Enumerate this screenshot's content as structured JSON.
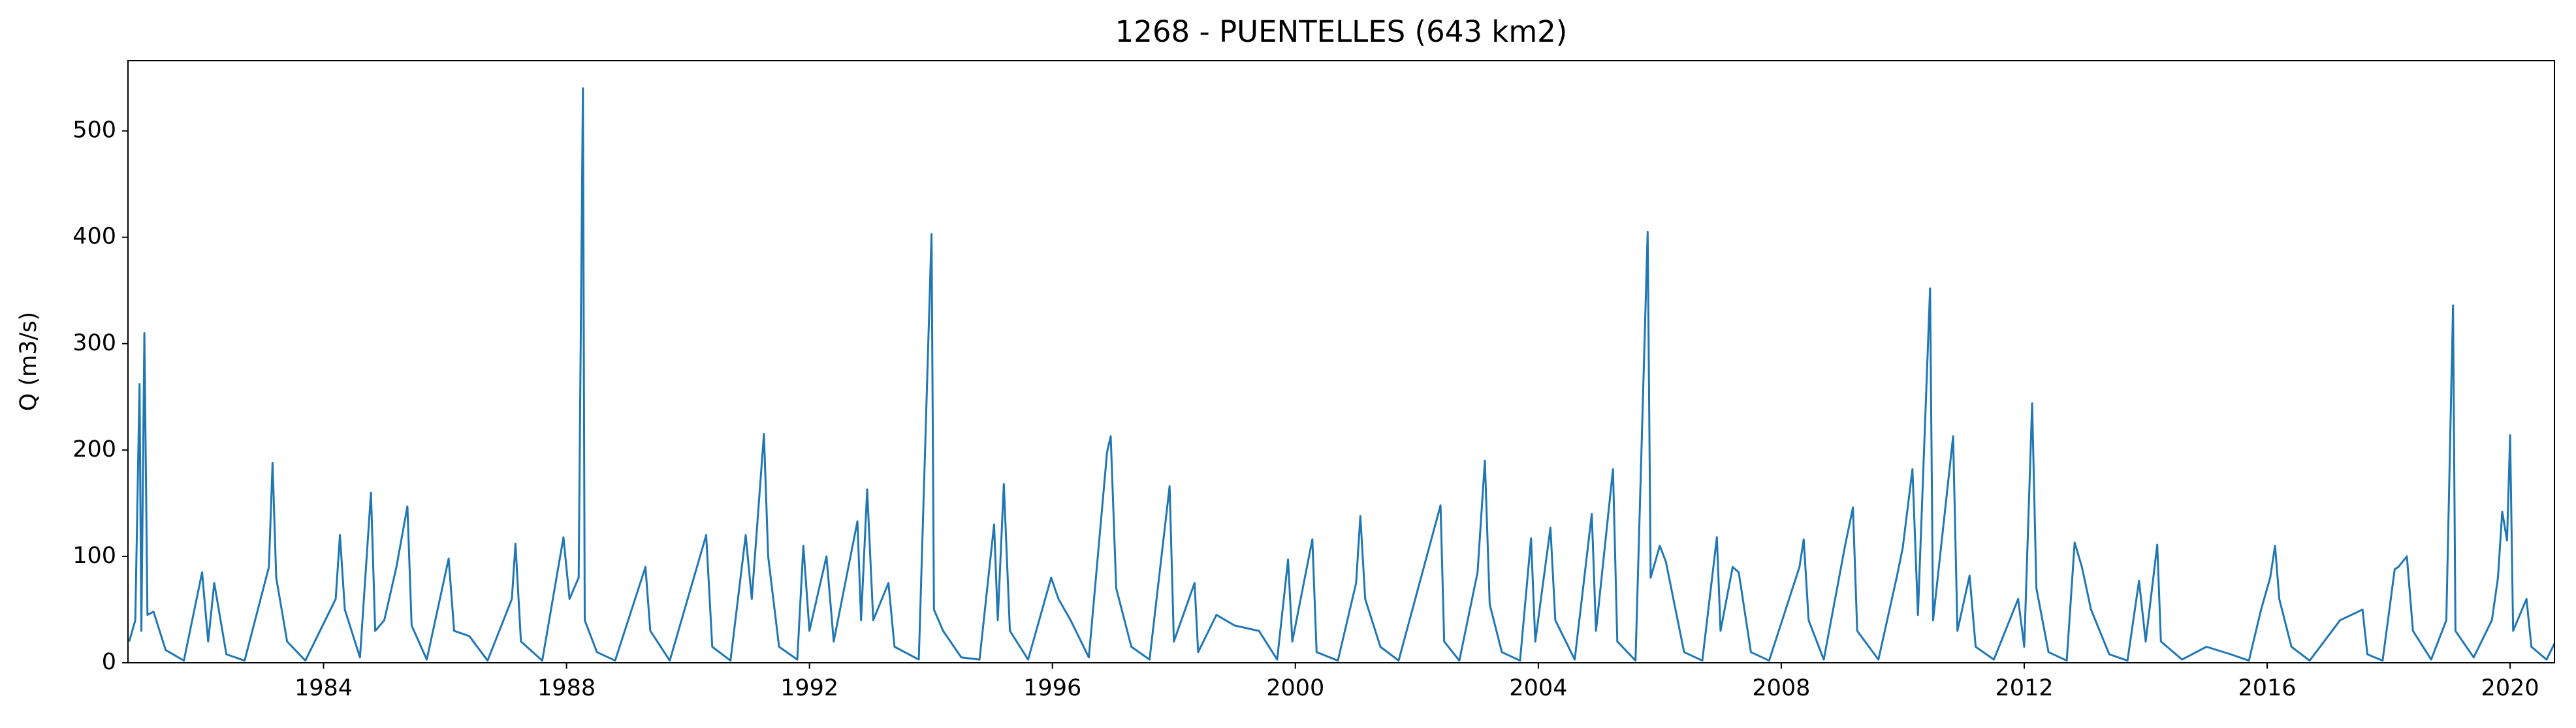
{
  "chart_data": {
    "type": "line",
    "title": "1268 - PUENTELLES (643 km2)",
    "y_label": "Q (m3/s)",
    "color": "#1f77b4",
    "x": [
      1980.8,
      1980.9,
      1980.97,
      1981,
      1981.05,
      1981.1,
      1981.2,
      1981.4,
      1981.7,
      1982,
      1982.1,
      1982.2,
      1982.4,
      1982.7,
      1983.1,
      1983.16,
      1983.22,
      1983.4,
      1983.7,
      1984.2,
      1984.27,
      1984.35,
      1984.6,
      1984.78,
      1984.85,
      1985,
      1985.2,
      1985.38,
      1985.45,
      1985.7,
      1986.06,
      1986.15,
      1986.4,
      1986.7,
      1987.1,
      1987.16,
      1987.25,
      1987.6,
      1987.95,
      1988.05,
      1988.2,
      1988.27,
      1988.3,
      1988.5,
      1988.8,
      1989.3,
      1989.38,
      1989.7,
      1990.3,
      1990.4,
      1990.7,
      1990.95,
      1991.05,
      1991.25,
      1991.32,
      1991.5,
      1991.8,
      1991.9,
      1992,
      1992.28,
      1992.4,
      1992.79,
      1992.85,
      1992.95,
      1993.05,
      1993.3,
      1993.4,
      1993.8,
      1994.01,
      1994.05,
      1994.2,
      1994.5,
      1994.8,
      1995.04,
      1995.1,
      1995.2,
      1995.3,
      1995.6,
      1995.98,
      1996.1,
      1996.3,
      1996.6,
      1996.9,
      1996.96,
      1997.05,
      1997.3,
      1997.6,
      1997.93,
      1998,
      1998.34,
      1998.4,
      1998.7,
      1999,
      1999.4,
      1999.7,
      1999.88,
      1999.95,
      2000.28,
      2000.35,
      2000.7,
      2001,
      2001.07,
      2001.15,
      2001.4,
      2001.7,
      2002.39,
      2002.45,
      2002.7,
      2003,
      2003.12,
      2003.2,
      2003.4,
      2003.7,
      2003.88,
      2003.95,
      2004.2,
      2004.28,
      2004.6,
      2004.88,
      2004.95,
      2005.23,
      2005.3,
      2005.6,
      2005.8,
      2005.85,
      2006,
      2006.1,
      2006.4,
      2006.7,
      2006.94,
      2007,
      2007.2,
      2007.3,
      2007.5,
      2007.8,
      2008.3,
      2008.37,
      2008.45,
      2008.7,
      2009.05,
      2009.18,
      2009.25,
      2009.6,
      2009.9,
      2010,
      2010.16,
      2010.25,
      2010.45,
      2010.5,
      2010.83,
      2010.9,
      2011.1,
      2011.2,
      2011.5,
      2011.9,
      2012,
      2012.13,
      2012.2,
      2012.4,
      2012.7,
      2012.83,
      2012.95,
      2013.1,
      2013.4,
      2013.7,
      2013.89,
      2014,
      2014.19,
      2014.25,
      2014.6,
      2015,
      2015.4,
      2015.7,
      2015.9,
      2016.05,
      2016.13,
      2016.2,
      2016.4,
      2016.7,
      2017.2,
      2017.57,
      2017.65,
      2017.9,
      2018.1,
      2018.16,
      2018.3,
      2018.4,
      2018.7,
      2018.95,
      2019.06,
      2019.1,
      2019.4,
      2019.7,
      2019.8,
      2019.87,
      2019.95,
      2020,
      2020.05,
      2020.27,
      2020.35,
      2020.6,
      2020.73
    ],
    "values": [
      20,
      40,
      262,
      30,
      310,
      45,
      48,
      12,
      2,
      85,
      20,
      75,
      8,
      2,
      90,
      188,
      80,
      20,
      2,
      60,
      120,
      50,
      5,
      160,
      30,
      40,
      90,
      147,
      35,
      3,
      98,
      30,
      25,
      2,
      60,
      112,
      20,
      2,
      118,
      60,
      80,
      540,
      40,
      10,
      2,
      90,
      30,
      2,
      120,
      15,
      2,
      120,
      60,
      215,
      100,
      15,
      3,
      110,
      30,
      100,
      20,
      133,
      40,
      163,
      40,
      75,
      15,
      3,
      403,
      50,
      30,
      5,
      3,
      130,
      40,
      168,
      30,
      3,
      80,
      60,
      40,
      5,
      198,
      213,
      70,
      15,
      3,
      166,
      20,
      75,
      10,
      45,
      35,
      30,
      3,
      97,
      20,
      116,
      10,
      2,
      75,
      138,
      60,
      15,
      2,
      148,
      20,
      2,
      85,
      190,
      55,
      10,
      2,
      117,
      20,
      127,
      40,
      3,
      140,
      30,
      182,
      20,
      2,
      405,
      80,
      110,
      95,
      10,
      2,
      118,
      30,
      90,
      85,
      10,
      2,
      90,
      116,
      40,
      3,
      110,
      146,
      30,
      3,
      80,
      108,
      182,
      45,
      352,
      40,
      213,
      30,
      82,
      15,
      3,
      60,
      15,
      244,
      70,
      10,
      2,
      113,
      90,
      50,
      8,
      2,
      77,
      20,
      111,
      20,
      3,
      15,
      8,
      2,
      50,
      80,
      110,
      60,
      15,
      2,
      40,
      50,
      8,
      2,
      88,
      90,
      100,
      30,
      3,
      40,
      336,
      30,
      5,
      40,
      80,
      142,
      115,
      214,
      30,
      60,
      15,
      3,
      18
    ],
    "xlim": [
      1980.78,
      2020.73
    ],
    "xticks": [
      1984,
      1988,
      1992,
      1996,
      2000,
      2004,
      2008,
      2012,
      2016,
      2020
    ],
    "ylim": [
      0,
      566
    ],
    "yticks": [
      0,
      100,
      200,
      300,
      400,
      500
    ]
  }
}
